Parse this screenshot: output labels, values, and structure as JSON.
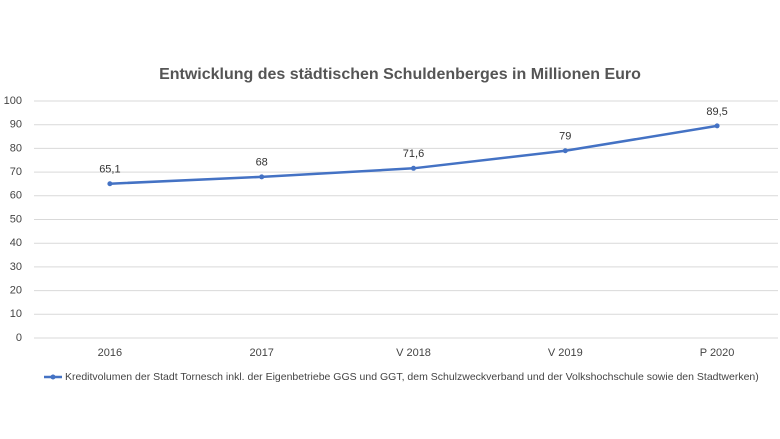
{
  "chart_data": {
    "type": "line",
    "title": "Entwicklung des städtischen Schuldenberges in Millionen Euro",
    "categories": [
      "2016",
      "2017",
      "V 2018",
      "V 2019",
      "P 2020"
    ],
    "series": [
      {
        "name": "Kreditvolumen der Stadt Tornesch inkl. der Eigenbetriebe GGS und GGT, dem Schulzweckverband und der Volkshochschule sowie den Stadtwerken)",
        "color": "#4472c4",
        "values": [
          65.1,
          68,
          71.6,
          79,
          89.5
        ],
        "value_labels": [
          "65,1",
          "68",
          "71,6",
          "79",
          "89,5"
        ]
      }
    ],
    "ylim": [
      0,
      100
    ],
    "yticks": [
      0,
      10,
      20,
      30,
      40,
      50,
      60,
      70,
      80,
      90,
      100
    ],
    "grid": true,
    "legend": "bottom"
  }
}
